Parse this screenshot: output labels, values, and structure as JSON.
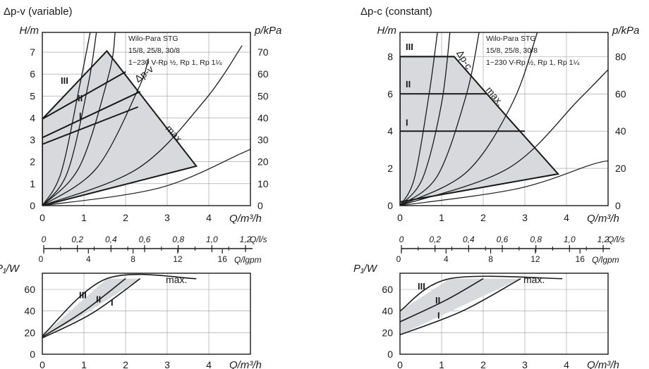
{
  "chart_data": [
    {
      "panel": "left",
      "type": "line",
      "title": "Δp-v (variable)",
      "main": {
        "ylabel_left": "H/m",
        "ylabel_right": "p/kPa",
        "xlabel": "Q/m³/h",
        "xlim": [
          0,
          5.0
        ],
        "ylim": [
          0,
          7.9
        ],
        "x_ticks": [
          "0",
          "1",
          "2",
          "3",
          "4"
        ],
        "y_ticks_left": [
          "0",
          "1",
          "2",
          "3",
          "4",
          "5",
          "6",
          "7"
        ],
        "y_ticks_right": [
          "0",
          "10",
          "20",
          "30",
          "40",
          "50",
          "60",
          "70"
        ],
        "product_lines": [
          "Wilo-Para STG",
          "15/8, 25/8, 30/8",
          "1~230 V-Rp ½, Rp 1, Rp 1¼"
        ],
        "control_label": "Δp-v",
        "max_label": "max.",
        "speed_labels": [
          "III",
          "II",
          "I"
        ],
        "envelope": [
          [
            0,
            0
          ],
          [
            0,
            3.95
          ],
          [
            1.55,
            7.05
          ],
          [
            3.7,
            1.8
          ],
          [
            0,
            0
          ]
        ],
        "series": [
          {
            "name": "III",
            "x": [
              0,
              2.0
            ],
            "y": [
              3.95,
              6.1
            ]
          },
          {
            "name": "II",
            "x": [
              0,
              2.35
            ],
            "y": [
              3.1,
              5.2
            ]
          },
          {
            "name": "I",
            "x": [
              0,
              2.3
            ],
            "y": [
              2.8,
              4.5
            ]
          }
        ],
        "system_curves": [
          {
            "x": [
              0,
              0.45,
              0.9,
              1.15
            ],
            "y": [
              0,
              1.5,
              5.5,
              7.9
            ]
          },
          {
            "x": [
              0,
              0.6,
              1.1,
              1.3
            ],
            "y": [
              0,
              1.5,
              5.5,
              7.9
            ]
          },
          {
            "x": [
              0,
              0.9,
              1.6,
              1.75
            ],
            "y": [
              0,
              1.8,
              6.0,
              7.9
            ]
          },
          {
            "x": [
              0,
              1.3,
              2.3,
              2.55
            ],
            "y": [
              0,
              1.7,
              5.3,
              6.7
            ]
          },
          {
            "x": [
              0,
              2.3,
              3.9,
              4.8
            ],
            "y": [
              0,
              1.7,
              4.8,
              7.3
            ]
          },
          {
            "x": [
              0,
              2.8,
              4.8,
              5.0
            ],
            "y": [
              0,
              0.8,
              2.4,
              2.6
            ]
          }
        ]
      },
      "scale_ls": {
        "label": "Q/l/s",
        "ticks": [
          "0",
          "0,2",
          "0,4",
          "0,6",
          "0,8",
          "1,0",
          "1,2"
        ]
      },
      "scale_gpm": {
        "label": "Q/lgpm",
        "ticks": [
          "0",
          "4",
          "8",
          "12",
          "16"
        ]
      },
      "power": {
        "ylabel": "P₁/W",
        "xlabel": "Q/m³/h",
        "xlim": [
          0,
          5.0
        ],
        "ylim": [
          0,
          75
        ],
        "x_ticks": [
          "0",
          "1",
          "2",
          "3",
          "4"
        ],
        "y_ticks": [
          "0",
          "20",
          "40",
          "60"
        ],
        "max_label": "max.",
        "speed_labels": [
          "III",
          "II",
          "I"
        ],
        "envelope": [
          [
            0,
            17
          ],
          [
            1.55,
            70
          ],
          [
            2.35,
            70
          ],
          [
            0.85,
            33
          ],
          [
            0,
            15
          ]
        ],
        "series": [
          {
            "name": "III",
            "x": [
              0,
              1.55,
              3.7
            ],
            "y": [
              17,
              70,
              70
            ]
          },
          {
            "name": "II",
            "x": [
              0,
              1.0,
              2.0
            ],
            "y": [
              16,
              40,
              70
            ]
          },
          {
            "name": "I",
            "x": [
              0,
              1.2,
              2.35
            ],
            "y": [
              15,
              38,
              70
            ]
          }
        ]
      }
    },
    {
      "panel": "right",
      "type": "line",
      "title": "Δp-c (constant)",
      "main": {
        "ylabel_left": "H/m",
        "ylabel_right": "p/kPa",
        "xlabel": "Q/m³/h",
        "xlim": [
          0,
          5.0
        ],
        "ylim": [
          0,
          9.3
        ],
        "x_ticks": [
          "0",
          "1",
          "2",
          "3",
          "4"
        ],
        "y_ticks_left": [
          "0",
          "2",
          "4",
          "6",
          "8"
        ],
        "y_ticks_right": [
          "0",
          "20",
          "40",
          "60",
          "80"
        ],
        "product_lines": [
          "Wilo-Para STG",
          "15/8, 25/8, 30/8",
          "1~230 V-Rp ½, Rp 1, Rp 1¼"
        ],
        "control_label": "Δp-c",
        "max_label": "max.",
        "speed_labels": [
          "III",
          "II",
          "I"
        ],
        "envelope": [
          [
            0,
            0
          ],
          [
            0,
            8
          ],
          [
            1.3,
            8
          ],
          [
            2.6,
            4.7
          ],
          [
            3.8,
            1.7
          ],
          [
            0,
            0.2
          ]
        ],
        "series": [
          {
            "name": "III",
            "x": [
              0,
              1.3
            ],
            "y": [
              8,
              8
            ]
          },
          {
            "name": "II",
            "x": [
              0,
              2.1
            ],
            "y": [
              6,
              6
            ]
          },
          {
            "name": "I",
            "x": [
              0,
              3.0
            ],
            "y": [
              4,
              4
            ]
          }
        ],
        "system_curves": [
          {
            "x": [
              0,
              0.35,
              0.7,
              0.9
            ],
            "y": [
              0,
              1.5,
              6.0,
              9.3
            ]
          },
          {
            "x": [
              0,
              0.55,
              1.0,
              1.2
            ],
            "y": [
              0,
              1.5,
              5.5,
              9.3
            ]
          },
          {
            "x": [
              0,
              0.9,
              1.6,
              1.9
            ],
            "y": [
              0,
              1.6,
              6.0,
              9.3
            ]
          },
          {
            "x": [
              0,
              1.6,
              2.7,
              3.3
            ],
            "y": [
              0,
              1.8,
              5.5,
              9.3
            ]
          },
          {
            "x": [
              0,
              2.6,
              4.3,
              5.0
            ],
            "y": [
              0,
              2.0,
              5.7,
              7.3
            ]
          },
          {
            "x": [
              0,
              2.8,
              4.6,
              5.0
            ],
            "y": [
              0,
              0.9,
              2.2,
              2.4
            ]
          }
        ]
      },
      "scale_ls": {
        "label": "Q/l/s",
        "ticks": [
          "0",
          "0,2",
          "0,4",
          "0,6",
          "0,8",
          "1,0",
          "1,2"
        ]
      },
      "scale_gpm": {
        "label": "Q/lgpm",
        "ticks": [
          "0",
          "4",
          "8",
          "12",
          "16"
        ]
      },
      "power": {
        "ylabel": "P₁/W",
        "xlabel": "Q/m³/h",
        "xlim": [
          0,
          5.0
        ],
        "ylim": [
          0,
          75
        ],
        "x_ticks": [
          "0",
          "1",
          "2",
          "3",
          "4"
        ],
        "y_ticks": [
          "0",
          "20",
          "40",
          "60"
        ],
        "max_label": "max.",
        "speed_labels": [
          "III",
          "II",
          "I"
        ],
        "envelope": [
          [
            0,
            40
          ],
          [
            1.2,
            70
          ],
          [
            2.9,
            70
          ],
          [
            0,
            18
          ]
        ],
        "series": [
          {
            "name": "III",
            "x": [
              0,
              1.2,
              3.9
            ],
            "y": [
              40,
              70,
              70
            ]
          },
          {
            "name": "II",
            "x": [
              0,
              1.1,
              2.0
            ],
            "y": [
              30,
              50,
              70
            ]
          },
          {
            "name": "I",
            "x": [
              0,
              1.5,
              2.9
            ],
            "y": [
              18,
              40,
              70
            ]
          }
        ]
      }
    }
  ]
}
